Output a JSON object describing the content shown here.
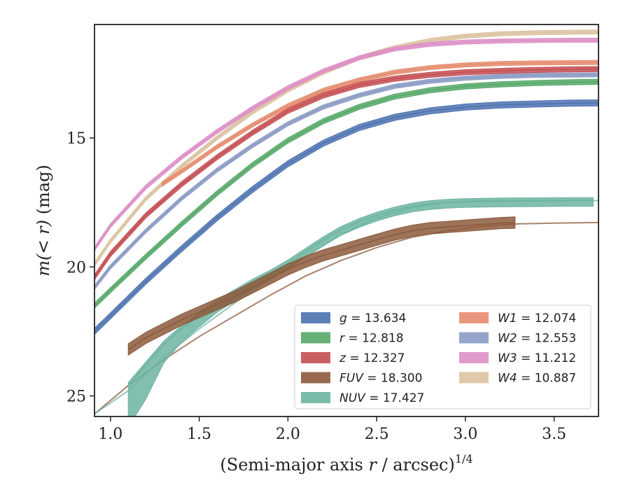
{
  "chart_data": {
    "type": "line",
    "title": "",
    "xlabel": "(Semi-major axis r / arcsec)",
    "xlabel_var": "r",
    "xlabel_pre": "(Semi-major axis ",
    "xlabel_post": " / arcsec)",
    "xlabel_exp": "1/4",
    "ylabel_var": "m(< r)",
    "ylabel_unit": " (mag)",
    "xlim": [
      0.91,
      3.75
    ],
    "ylim": [
      25.8,
      10.6
    ],
    "y_inverted": true,
    "grid": false,
    "legend_position": "lower-right",
    "xticks": [
      1.0,
      1.5,
      2.0,
      2.5,
      3.0,
      3.5
    ],
    "xtick_labels": [
      "1.0",
      "1.5",
      "2.0",
      "2.5",
      "3.0",
      "3.5"
    ],
    "yticks": [
      15,
      20,
      25
    ],
    "ytick_labels": [
      "15",
      "20",
      "25"
    ],
    "series": [
      {
        "name": "g = 13.634",
        "label_var": "g",
        "label_val": " = 13.634",
        "color": "#4c72b0",
        "x": [
          0.91,
          1.0,
          1.2,
          1.4,
          1.6,
          1.8,
          2.0,
          2.2,
          2.4,
          2.6,
          2.8,
          3.0,
          3.2,
          3.4,
          3.6,
          3.75
        ],
        "y": [
          22.5,
          21.9,
          20.55,
          19.3,
          18.1,
          17.0,
          16.0,
          15.2,
          14.6,
          14.2,
          13.95,
          13.8,
          13.72,
          13.68,
          13.65,
          13.64
        ],
        "halfwidth": 0.12
      },
      {
        "name": "r = 12.818",
        "label_var": "r",
        "label_val": " = 12.818",
        "color": "#55a868",
        "x": [
          0.91,
          1.0,
          1.2,
          1.4,
          1.6,
          1.8,
          2.0,
          2.2,
          2.4,
          2.6,
          2.8,
          3.0,
          3.2,
          3.4,
          3.6,
          3.75
        ],
        "y": [
          21.5,
          20.9,
          19.6,
          18.35,
          17.15,
          16.05,
          15.1,
          14.35,
          13.8,
          13.4,
          13.15,
          13.0,
          12.92,
          12.87,
          12.84,
          12.82
        ],
        "halfwidth": 0.1
      },
      {
        "name": "z = 12.327",
        "label_var": "z",
        "label_val": " = 12.327",
        "color": "#c44e52",
        "x": [
          0.91,
          1.0,
          1.2,
          1.4,
          1.6,
          1.8,
          2.0,
          2.2,
          2.4,
          2.6,
          2.8,
          3.0,
          3.2,
          3.4,
          3.6,
          3.75
        ],
        "y": [
          20.4,
          19.5,
          18.0,
          16.8,
          15.75,
          14.8,
          13.95,
          13.35,
          12.95,
          12.7,
          12.55,
          12.45,
          12.4,
          12.36,
          12.34,
          12.33
        ],
        "halfwidth": 0.1
      },
      {
        "name": "FUV = 18.300",
        "label_var": "FUV",
        "label_val": " = 18.300",
        "color": "#8c5a3c",
        "x": [
          1.1,
          1.2,
          1.3,
          1.4,
          1.5,
          1.6,
          1.7,
          1.8,
          1.9,
          2.0,
          2.1,
          2.2,
          2.3,
          2.4,
          2.5,
          2.6,
          2.7,
          2.8,
          2.9,
          3.0,
          3.1,
          3.2,
          3.28
        ],
        "y": [
          23.2,
          22.75,
          22.4,
          22.05,
          21.75,
          21.45,
          21.15,
          20.8,
          20.45,
          20.1,
          19.8,
          19.55,
          19.35,
          19.15,
          18.95,
          18.75,
          18.6,
          18.5,
          18.45,
          18.4,
          18.35,
          18.3,
          18.28
        ],
        "halfwidth": 0.22,
        "extension_x": [
          0.91,
          1.1,
          1.3,
          1.5,
          1.7,
          1.9,
          2.1,
          2.3,
          2.5,
          2.7,
          2.9,
          3.1,
          3.3,
          3.5,
          3.75
        ],
        "extension_y": [
          25.7,
          24.6,
          23.6,
          22.7,
          21.9,
          21.1,
          20.35,
          19.75,
          19.25,
          18.85,
          18.6,
          18.42,
          18.33,
          18.3,
          18.28
        ]
      },
      {
        "name": "NUV = 17.427",
        "label_var": "NUV",
        "label_val": " = 17.427",
        "color": "#6cb4a0",
        "x": [
          1.1,
          1.2,
          1.3,
          1.4,
          1.5,
          1.6,
          1.7,
          1.8,
          1.9,
          2.0,
          2.1,
          2.2,
          2.3,
          2.4,
          2.5,
          2.6,
          2.7,
          2.8,
          2.9,
          3.0,
          3.2,
          3.4,
          3.6,
          3.72
        ],
        "y": [
          24.6,
          23.8,
          23.0,
          22.4,
          21.9,
          21.4,
          21.0,
          20.6,
          20.25,
          19.85,
          19.4,
          18.95,
          18.55,
          18.25,
          18.0,
          17.8,
          17.65,
          17.55,
          17.5,
          17.47,
          17.45,
          17.44,
          17.43,
          17.43
        ],
        "halfwidth": 0.12,
        "lower_extra": [
          1.5,
          1.2,
          0.6,
          0.4,
          0.3,
          0.25,
          0.2,
          0.15,
          0.12,
          0.1,
          0.1,
          0.1,
          0.1,
          0.1,
          0.1,
          0.1,
          0.1,
          0.1,
          0.1,
          0.1,
          0.1,
          0.1,
          0.1,
          0.1
        ],
        "extension_x": [
          0.91,
          1.1,
          1.3,
          1.5,
          1.7,
          1.9,
          2.1,
          2.3,
          2.5,
          2.7,
          2.9,
          3.1,
          3.3,
          3.5,
          3.75
        ],
        "extension_y": [
          25.7,
          24.8,
          23.5,
          22.4,
          21.4,
          20.5,
          19.6,
          18.75,
          18.1,
          17.7,
          17.5,
          17.44,
          17.43,
          17.43,
          17.43
        ]
      },
      {
        "name": "W1 = 12.074",
        "label_var": "W1",
        "label_val": " = 12.074",
        "color": "#e58c6e",
        "x": [
          1.29,
          1.4,
          1.6,
          1.8,
          2.0,
          2.2,
          2.4,
          2.6,
          2.8,
          3.0,
          3.2,
          3.4,
          3.6,
          3.75
        ],
        "y": [
          16.8,
          16.3,
          15.35,
          14.5,
          13.75,
          13.15,
          12.75,
          12.45,
          12.27,
          12.17,
          12.11,
          12.09,
          12.08,
          12.07
        ],
        "halfwidth": 0.08
      },
      {
        "name": "W2 = 12.553",
        "label_var": "W2",
        "label_val": " = 12.553",
        "color": "#8a9ac4",
        "x": [
          0.91,
          1.0,
          1.2,
          1.4,
          1.6,
          1.8,
          2.0,
          2.2,
          2.4,
          2.6,
          2.8,
          3.0,
          3.2,
          3.4,
          3.6,
          3.75
        ],
        "y": [
          20.8,
          20.0,
          18.6,
          17.35,
          16.25,
          15.3,
          14.45,
          13.8,
          13.35,
          13.0,
          12.8,
          12.68,
          12.61,
          12.57,
          12.56,
          12.55
        ],
        "halfwidth": 0.08
      },
      {
        "name": "W3 = 11.212",
        "label_var": "W3",
        "label_val": " = 11.212",
        "color": "#dd8fc6",
        "x": [
          0.91,
          1.0,
          1.2,
          1.4,
          1.6,
          1.8,
          2.0,
          2.2,
          2.4,
          2.6,
          2.8,
          3.0,
          3.2,
          3.4,
          3.6,
          3.75
        ],
        "y": [
          19.3,
          18.4,
          16.9,
          15.75,
          14.75,
          13.85,
          13.05,
          12.4,
          11.9,
          11.55,
          11.37,
          11.28,
          11.24,
          11.22,
          11.21,
          11.21
        ],
        "halfwidth": 0.08
      },
      {
        "name": "W4 = 10.887",
        "label_var": "W4",
        "label_val": " = 10.887",
        "color": "#dcc3a0",
        "x": [
          0.91,
          1.0,
          1.2,
          1.4,
          1.6,
          1.8,
          2.0,
          2.2,
          2.4,
          2.6,
          2.8,
          3.0,
          3.2,
          3.4,
          3.6,
          3.75
        ],
        "y": [
          19.9,
          19.0,
          17.35,
          16.1,
          15.0,
          14.0,
          13.15,
          12.45,
          11.9,
          11.5,
          11.22,
          11.05,
          10.96,
          10.92,
          10.9,
          10.89
        ],
        "halfwidth": 0.08
      }
    ]
  }
}
